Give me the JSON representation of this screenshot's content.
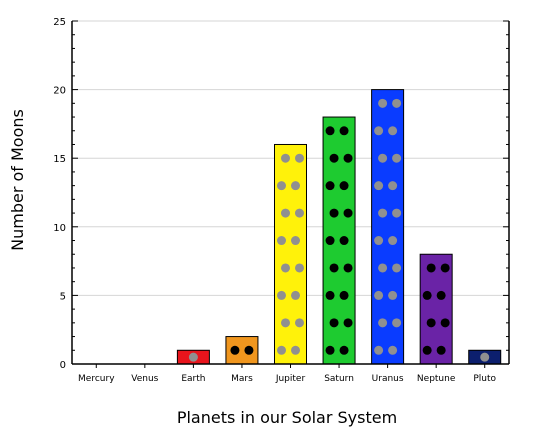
{
  "chart_data": {
    "type": "bar",
    "title": "",
    "xlabel": "Planets in our Solar System",
    "ylabel": "Number of Moons",
    "categories": [
      "Mercury",
      "Venus",
      "Earth",
      "Mars",
      "Jupiter",
      "Saturn",
      "Uranus",
      "Neptune",
      "Pluto"
    ],
    "values": [
      0,
      0,
      1,
      2,
      16,
      18,
      20,
      8,
      1
    ],
    "ylim": [
      0,
      25
    ],
    "yticks": [
      "0",
      "5",
      "10",
      "15",
      "20",
      "25"
    ],
    "grid": true,
    "legend": "none",
    "bar_colors": [
      "#808080",
      "#808080",
      "#e8141c",
      "#f0961e",
      "#fff20a",
      "#1ecb30",
      "#0a3cff",
      "#6a23a6",
      "#0c1f6e"
    ],
    "dot_colors": [
      "#909090",
      "#909090",
      "#909090",
      "#000000",
      "#909090",
      "#000000",
      "#909090",
      "#000000",
      "#909090"
    ]
  }
}
